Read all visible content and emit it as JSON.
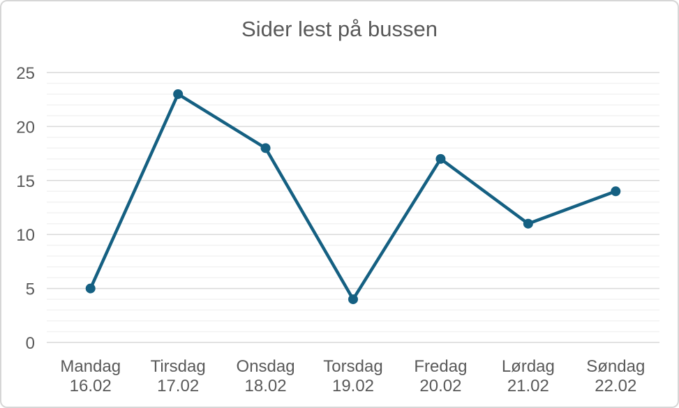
{
  "chart_data": {
    "type": "line",
    "title": "Sider lest på bussen",
    "categories": [
      "Mandag",
      "Tirsdag",
      "Onsdag",
      "Torsdag",
      "Fredag",
      "Lørdag",
      "Søndag"
    ],
    "category_sublabels": [
      "16.02",
      "17.02",
      "18.02",
      "19.02",
      "20.02",
      "21.02",
      "22.02"
    ],
    "values": [
      5,
      23,
      18,
      4,
      17,
      11,
      14
    ],
    "ylim": [
      0,
      25
    ],
    "y_major_step": 5,
    "y_minor_step": 1,
    "y_tick_labels": [
      "0",
      "5",
      "10",
      "15",
      "20",
      "25"
    ],
    "legend": "none",
    "grid": "horizontal major + minor",
    "marker": "circle",
    "colors": {
      "line": "#156082",
      "marker": "#156082",
      "major_gridline": "#d9d9d9",
      "minor_gridline": "#f2f2f2",
      "text": "#595959",
      "frame_border": "#d6d6d6",
      "background": "#ffffff"
    }
  }
}
